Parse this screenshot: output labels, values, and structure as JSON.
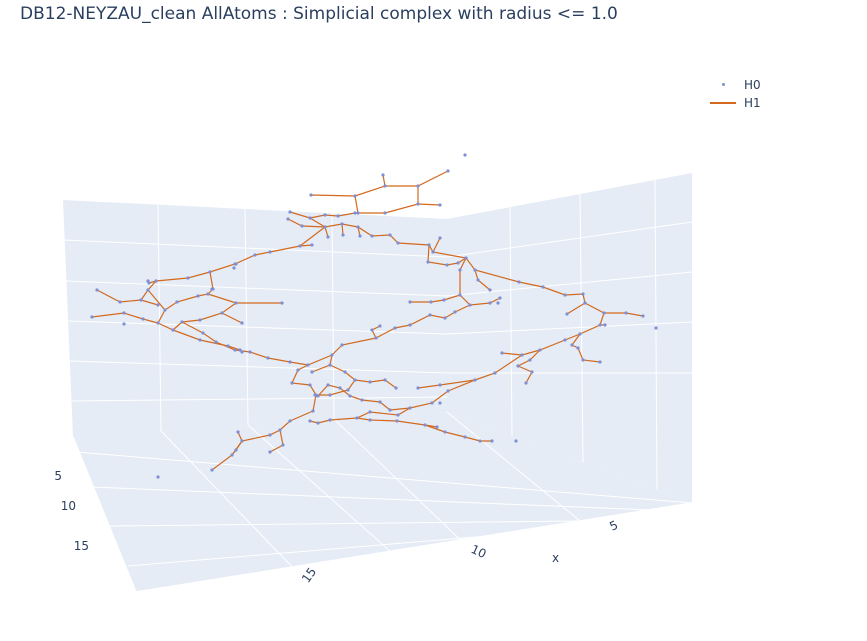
{
  "title": "DB12-NEYZAU_clean AllAtoms : Simplicial complex with radius <= 1.0",
  "legend": [
    {
      "name": "H0",
      "color": "#7f8fd4"
    },
    {
      "name": "H1",
      "color": "#d2691e"
    }
  ],
  "axes": {
    "x_title": "x",
    "x_ticks": [
      "5",
      "10",
      "15"
    ],
    "y_ticks": [
      "5",
      "10",
      "15"
    ],
    "grid": true,
    "background": "#e5ecf6"
  },
  "chart_data": {
    "type": "scatter3d",
    "title": "DB12-NEYZAU_clean AllAtoms : Simplicial complex with radius <= 1.0",
    "series": [
      {
        "name": "H0",
        "mode": "markers"
      },
      {
        "name": "H1",
        "mode": "lines"
      }
    ]
  }
}
